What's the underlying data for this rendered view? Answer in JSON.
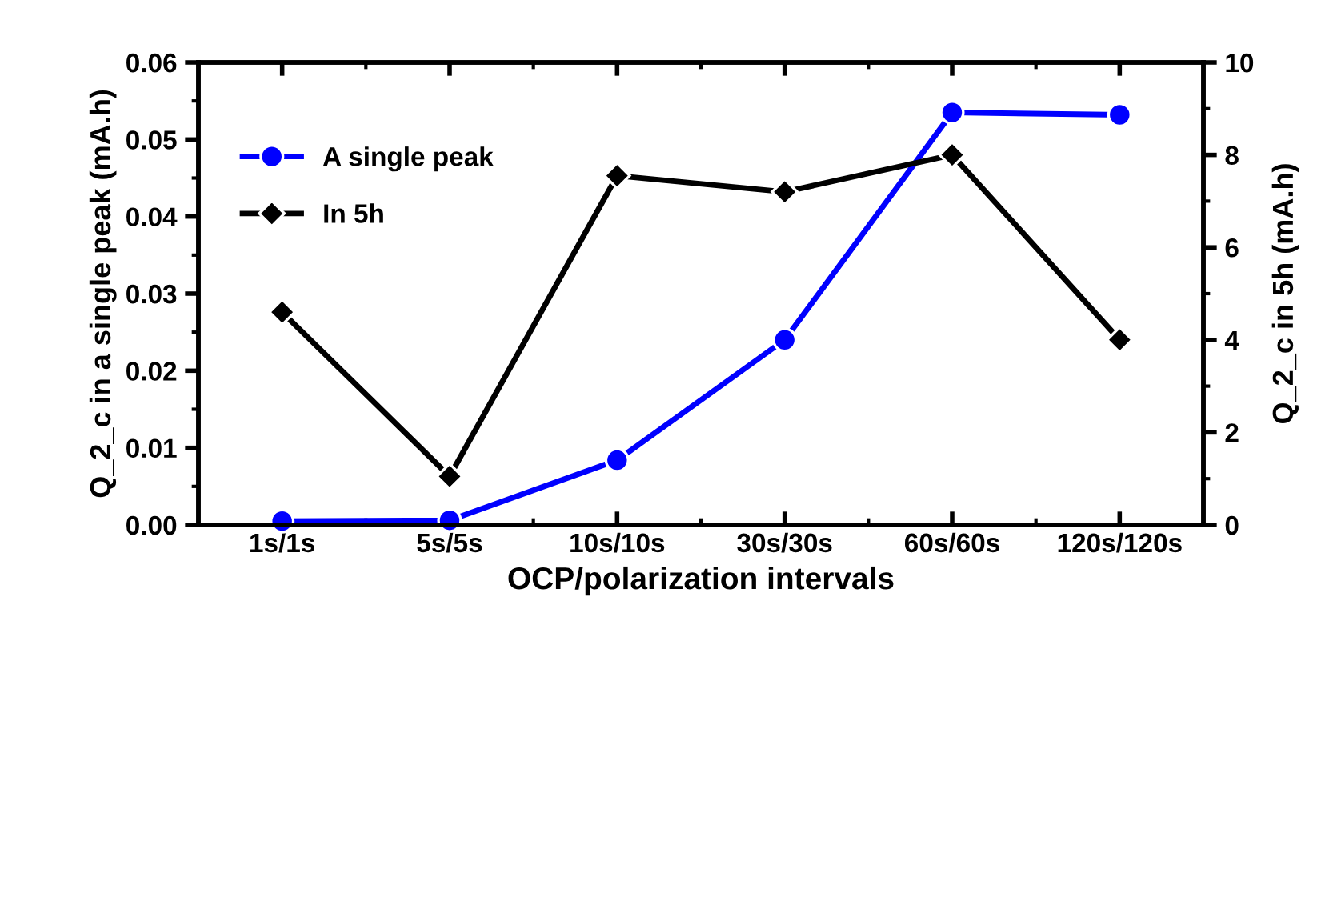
{
  "chart_data": {
    "type": "line",
    "xlabel": "OCP/polarization intervals",
    "ylabel": "Q_2_c in a single peak (mA.h)",
    "y2label": "Q_2_c in 5h (mA.h)",
    "categories": [
      "1s/1s",
      "5s/5s",
      "10s/10s",
      "30s/30s",
      "60s/60s",
      "120s/120s"
    ],
    "series": [
      {
        "name": "A single peak",
        "color": "#0000ff",
        "marker": "circle",
        "values": [
          0.0005,
          0.0006,
          0.0084,
          0.024,
          0.0535,
          0.0532
        ]
      },
      {
        "name": "In 5h",
        "color": "#000000",
        "marker": "diamond",
        "axis": "y2",
        "values": [
          4.6,
          1.05,
          7.55,
          7.2,
          8.0,
          4.0
        ]
      }
    ],
    "ylim": [
      0,
      0.06
    ],
    "yticks": [
      {
        "value": 0,
        "label": "0.00"
      },
      0.01,
      0.02,
      0.03,
      0.04,
      0.05,
      0.06
    ],
    "y2lim": [
      0,
      10
    ],
    "y2ticks": [
      0,
      2,
      4,
      6,
      8,
      10
    ],
    "grid": false,
    "legend": "top left",
    "line_style": "solid"
  }
}
